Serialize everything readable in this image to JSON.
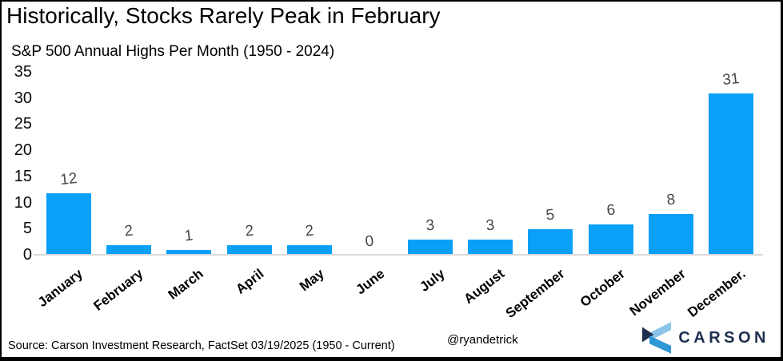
{
  "header": {
    "title": "Historically, Stocks Rarely Peak in February",
    "subtitle": "S&P 500 Annual Highs Per Month (1950 - 2024)"
  },
  "footer": {
    "source": "Source: Carson Investment Research, FactSet 03/19/2025 (1950 - Current)",
    "watermark": "@ryandetrick",
    "logo_text": "CARSON"
  },
  "chart_data": {
    "type": "bar",
    "title": "Historically, Stocks Rarely Peak in February",
    "subtitle": "S&P 500 Annual Highs Per Month (1950 - 2024)",
    "categories": [
      "January",
      "February",
      "March",
      "April",
      "May",
      "June",
      "July",
      "August",
      "September",
      "October",
      "November",
      "December."
    ],
    "values": [
      12,
      2,
      1,
      2,
      2,
      0,
      3,
      3,
      5,
      6,
      8,
      31
    ],
    "xlabel": "",
    "ylabel": "",
    "ylim": [
      0,
      35
    ],
    "yticks": [
      35,
      30,
      25,
      20,
      15,
      10,
      5,
      0
    ],
    "grid": false,
    "legend_position": "none",
    "bar_color": "#0aa0f8",
    "value_label_color": "#474747"
  },
  "colors": {
    "bar": "#0aa0f8",
    "baseline": "#d9d9d9",
    "logo_navy": "#1d2e4e",
    "logo_light": "#8ac4e9",
    "logo_mid": "#2f97d4"
  }
}
